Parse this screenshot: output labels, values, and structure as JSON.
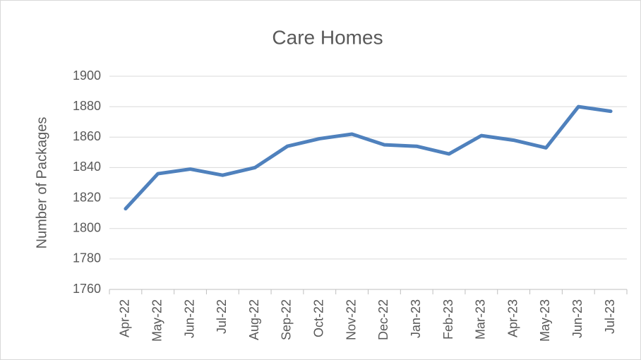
{
  "chart_data": {
    "type": "line",
    "title": "Care Homes",
    "ylabel": "Number of Packages",
    "categories": [
      "Apr-22",
      "May-22",
      "Jun-22",
      "Jul-22",
      "Aug-22",
      "Sep-22",
      "Oct-22",
      "Nov-22",
      "Dec-22",
      "Jan-23",
      "Feb-23",
      "Mar-23",
      "Apr-23",
      "May-23",
      "Jun-23",
      "Jul-23"
    ],
    "values": [
      1813,
      1836,
      1839,
      1835,
      1840,
      1854,
      1859,
      1862,
      1855,
      1854,
      1849,
      1861,
      1858,
      1853,
      1880,
      1877
    ],
    "color": "#4f81bd",
    "ylim": [
      1760,
      1900
    ],
    "yticks": [
      1760,
      1780,
      1800,
      1820,
      1840,
      1860,
      1880,
      1900
    ],
    "grid": true
  }
}
